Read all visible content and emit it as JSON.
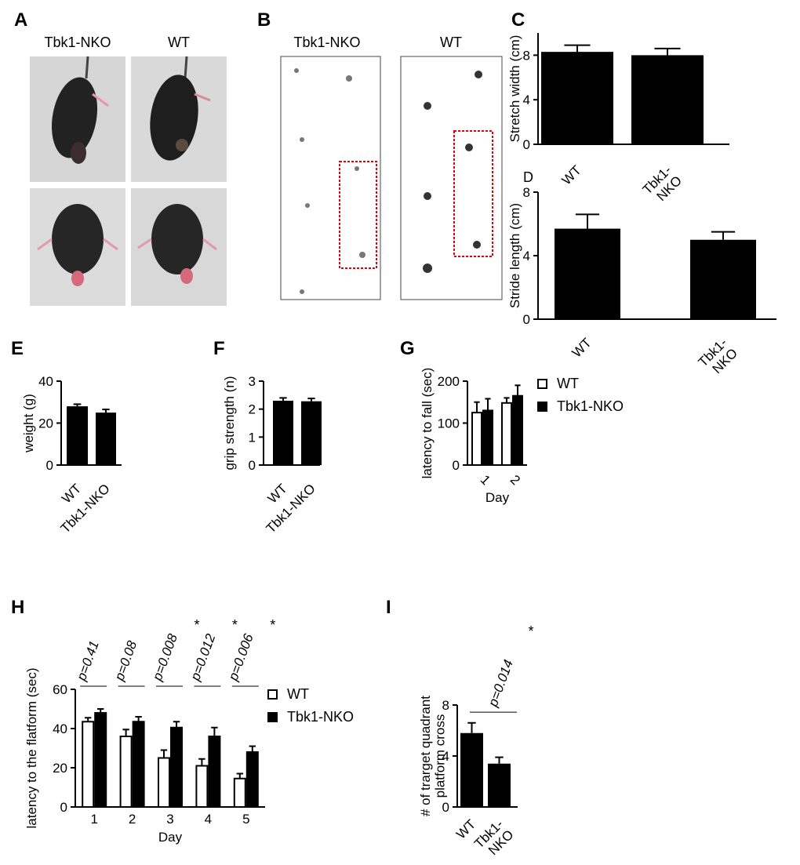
{
  "panels": {
    "A": "A",
    "B": "B",
    "C": "C",
    "D": "D",
    "E": "E",
    "F": "F",
    "G": "G",
    "H": "H",
    "I": "I"
  },
  "photos": {
    "label_left": "Tbk1-NKO",
    "label_right": "WT"
  },
  "footprints": {
    "label_left": "Tbk1-NKO",
    "label_right": "WT"
  },
  "colors": {
    "bar_fill": "#000000",
    "bar_open": "#ffffff",
    "box_highlight": "#e0000e"
  },
  "chart_data": [
    {
      "id": "C",
      "type": "bar",
      "categories": [
        "WT",
        "Tbk1-\nNKO"
      ],
      "values": [
        8.3,
        8.0
      ],
      "errors": [
        0.6,
        0.6
      ],
      "ylabel": "Stretch width (cm)",
      "ylim": [
        0,
        10
      ],
      "yticks": [
        0,
        4,
        8
      ]
    },
    {
      "id": "D",
      "type": "bar",
      "categories": [
        "WT",
        "Tbk1-\nNKO"
      ],
      "values": [
        5.7,
        5.0
      ],
      "errors": [
        0.9,
        0.5
      ],
      "ylabel": "Stride length (cm)",
      "ylim": [
        0,
        8
      ],
      "yticks": [
        0,
        4,
        8
      ]
    },
    {
      "id": "E",
      "type": "bar",
      "categories": [
        "WT",
        "Tbk1-NKO"
      ],
      "values": [
        28,
        25
      ],
      "errors": [
        1,
        1.5
      ],
      "ylabel": "weight (g)",
      "ylim": [
        0,
        40
      ],
      "yticks": [
        0,
        20,
        40
      ]
    },
    {
      "id": "F",
      "type": "bar",
      "categories": [
        "WT",
        "Tbk1-NKO"
      ],
      "values": [
        2.3,
        2.28
      ],
      "errors": [
        0.1,
        0.1
      ],
      "ylabel": "grip strength (n)",
      "ylim": [
        0,
        3
      ],
      "yticks": [
        0,
        1,
        2,
        3
      ]
    },
    {
      "id": "G",
      "type": "bar",
      "categories": [
        "1",
        "2"
      ],
      "series": [
        {
          "name": "WT",
          "values": [
            125,
            148
          ],
          "errors": [
            25,
            12
          ]
        },
        {
          "name": "Tbk1-NKO",
          "values": [
            130,
            165
          ],
          "errors": [
            28,
            25
          ]
        }
      ],
      "xlabel": "Day",
      "ylabel": "latency to fall (sec)",
      "ylim": [
        0,
        200
      ],
      "yticks": [
        0,
        100,
        200
      ],
      "legend": "right"
    },
    {
      "id": "H",
      "type": "bar",
      "categories": [
        "1",
        "2",
        "3",
        "4",
        "5"
      ],
      "series": [
        {
          "name": "WT",
          "values": [
            43.5,
            36,
            25,
            21,
            14.5
          ],
          "errors": [
            2,
            3.5,
            4,
            3.5,
            2.5
          ]
        },
        {
          "name": "Tbk1-NKO",
          "values": [
            48,
            43.5,
            40.5,
            36,
            28
          ],
          "errors": [
            2,
            2.5,
            3,
            4.5,
            3
          ]
        }
      ],
      "annotations": [
        "p=0.41",
        "p=0.08",
        "p=0.008",
        "p=0.012",
        "p=0.006"
      ],
      "significance": [
        "",
        "",
        "*",
        "*",
        "*"
      ],
      "xlabel": "Day",
      "ylabel": "latency to the flatform (sec)",
      "ylim": [
        0,
        60
      ],
      "yticks": [
        0,
        20,
        40,
        60
      ],
      "legend": "right"
    },
    {
      "id": "I",
      "type": "bar",
      "categories": [
        "WT",
        "Tbk1-\nNKO"
      ],
      "values": [
        5.8,
        3.4
      ],
      "errors": [
        0.8,
        0.5
      ],
      "annotation": "p=0.014",
      "significance": "*",
      "ylabel": "# of trarget quadrant\nplatform cross",
      "ylim": [
        0,
        8
      ],
      "yticks": [
        0,
        4,
        8
      ]
    }
  ]
}
